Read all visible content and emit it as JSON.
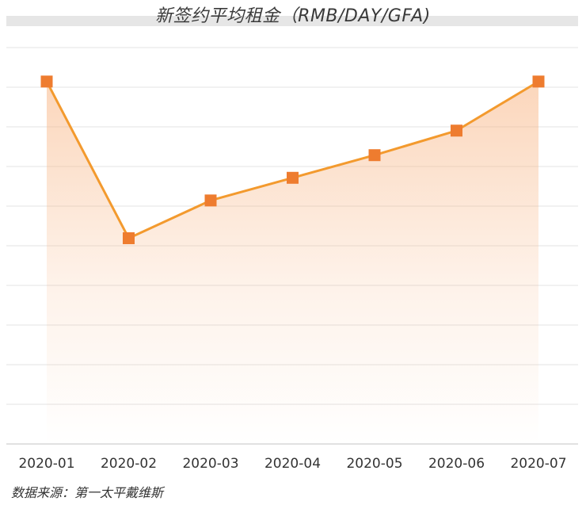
{
  "chart_data": {
    "type": "area",
    "title": "新签约平均租金（RMB/DAY/GFA)",
    "categories": [
      "2020-01",
      "2020-02",
      "2020-03",
      "2020-04",
      "2020-05",
      "2020-06",
      "2020-07"
    ],
    "series": [
      {
        "values": [
          9.6,
          5.45,
          6.45,
          7.05,
          7.65,
          8.3,
          9.6
        ]
      }
    ],
    "ylim": [
      0,
      10.5
    ],
    "grid": true,
    "y_tick_labels_visible": false,
    "marker": "square",
    "colors": {
      "line": "#f39a2e",
      "marker": "#ee7c2f",
      "fill": "#f8b584",
      "grid": "#e3e3e3",
      "axis": "#cfcfcf",
      "title_band": "#e6e6e6"
    }
  },
  "source": "数据来源：第一太平戴维斯"
}
